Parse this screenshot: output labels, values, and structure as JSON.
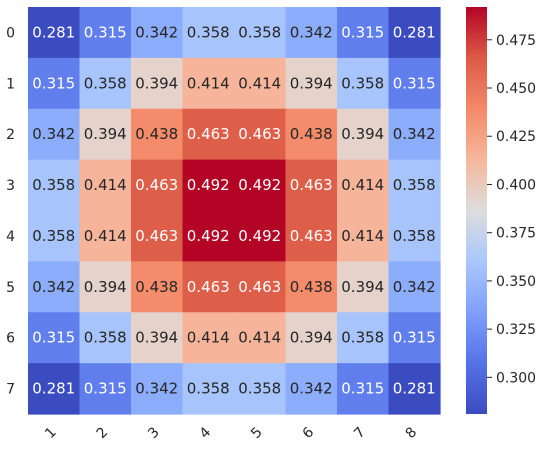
{
  "chart_data": {
    "type": "heatmap",
    "colormap": "coolwarm",
    "x_tick_labels": [
      "1",
      "2",
      "3",
      "4",
      "5",
      "6",
      "7",
      "8"
    ],
    "y_tick_labels": [
      "0",
      "1",
      "2",
      "3",
      "4",
      "5",
      "6",
      "7"
    ],
    "values": [
      [
        0.281,
        0.315,
        0.342,
        0.358,
        0.358,
        0.342,
        0.315,
        0.281
      ],
      [
        0.315,
        0.358,
        0.394,
        0.414,
        0.414,
        0.394,
        0.358,
        0.315
      ],
      [
        0.342,
        0.394,
        0.438,
        0.463,
        0.463,
        0.438,
        0.394,
        0.342
      ],
      [
        0.358,
        0.414,
        0.463,
        0.492,
        0.492,
        0.463,
        0.414,
        0.358
      ],
      [
        0.358,
        0.414,
        0.463,
        0.492,
        0.492,
        0.463,
        0.414,
        0.358
      ],
      [
        0.342,
        0.394,
        0.438,
        0.463,
        0.463,
        0.438,
        0.394,
        0.342
      ],
      [
        0.315,
        0.358,
        0.394,
        0.414,
        0.414,
        0.394,
        0.358,
        0.315
      ],
      [
        0.281,
        0.315,
        0.342,
        0.358,
        0.358,
        0.342,
        0.315,
        0.281
      ]
    ],
    "value_format": "3 decimals",
    "color_range": [
      0.281,
      0.492
    ],
    "colorbar_ticks": [
      "0.300",
      "0.325",
      "0.350",
      "0.375",
      "0.400",
      "0.425",
      "0.450",
      "0.475"
    ],
    "title": "",
    "xlabel": "",
    "ylabel": ""
  }
}
